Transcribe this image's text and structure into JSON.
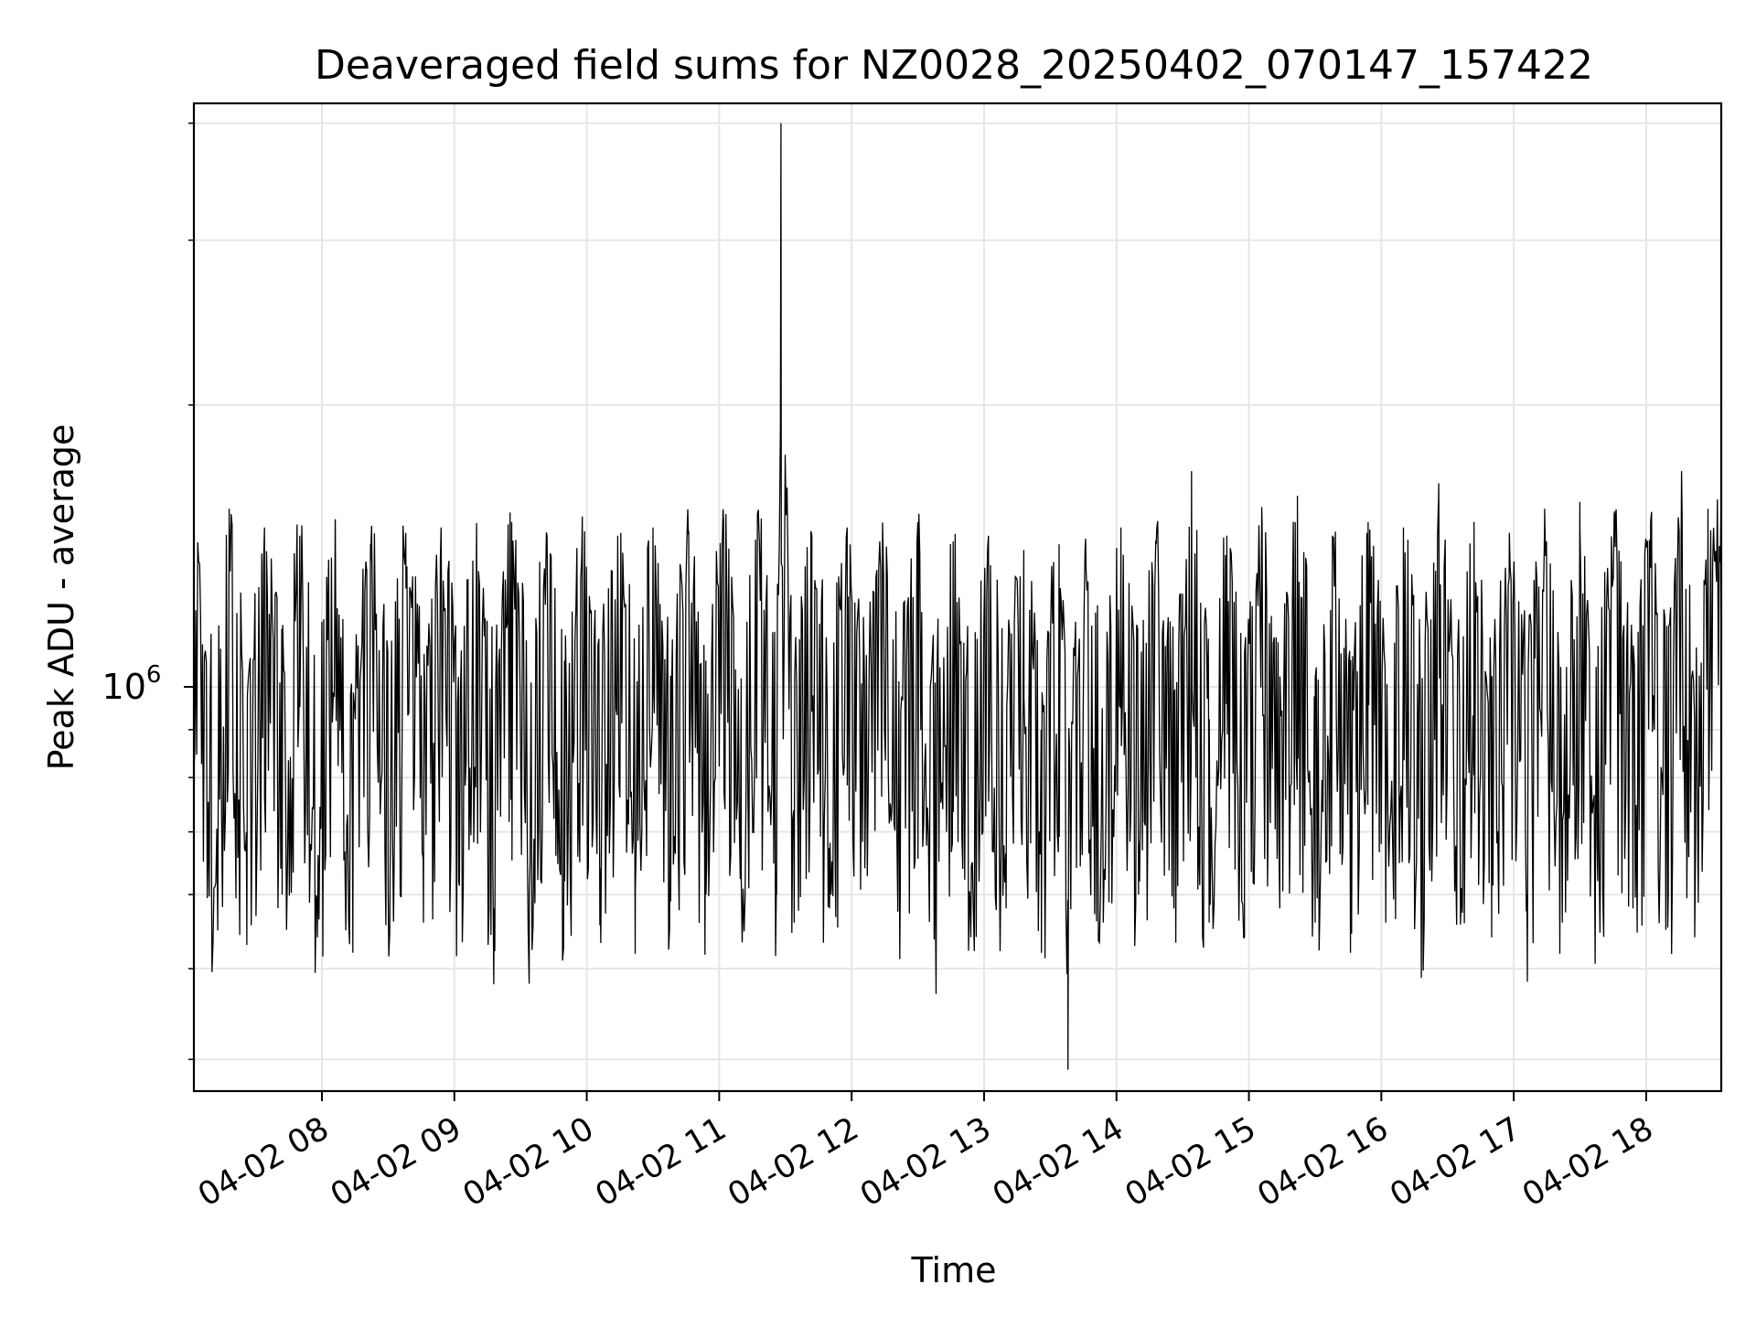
{
  "chart_data": {
    "type": "line",
    "title": "Deaveraged field sums for NZ0028_20250402_070147_157422",
    "xlabel": "Time",
    "ylabel": "Peak ADU - average",
    "x_axis": {
      "start": "04-02 07:02",
      "end": "04-02 18:34",
      "tick_labels": [
        "04-02 08",
        "04-02 09",
        "04-02 10",
        "04-02 11",
        "04-02 12",
        "04-02 13",
        "04-02 14",
        "04-02 15",
        "04-02 16",
        "04-02 17",
        "04-02 18"
      ]
    },
    "y_axis": {
      "scale": "log",
      "ylim": [
        370000,
        4200000
      ],
      "major_tick_labels": [
        {
          "base": "10",
          "exp": "6",
          "value": 1000000
        }
      ]
    },
    "grid": true,
    "color": "#000000",
    "series_points": [
      [
        "04-02 07:02",
        1400000
      ],
      [
        "04-02 07:10",
        620000
      ],
      [
        "04-02 07:18",
        1550000
      ],
      [
        "04-02 07:26",
        530000
      ],
      [
        "04-02 07:34",
        1480000
      ],
      [
        "04-02 07:42",
        600000
      ],
      [
        "04-02 07:50",
        1450000
      ],
      [
        "04-02 07:58",
        540000
      ],
      [
        "04-02 08:06",
        1500000
      ],
      [
        "04-02 08:14",
        520000
      ],
      [
        "04-02 08:22",
        1420000
      ],
      [
        "04-02 08:30",
        600000
      ],
      [
        "04-02 08:38",
        1460000
      ],
      [
        "04-02 08:46",
        560000
      ],
      [
        "04-02 08:54",
        1480000
      ],
      [
        "04-02 09:02",
        620000
      ],
      [
        "04-02 09:10",
        1400000
      ],
      [
        "04-02 09:18",
        580000
      ],
      [
        "04-02 09:26",
        1500000
      ],
      [
        "04-02 09:34",
        600000
      ],
      [
        "04-02 09:42",
        1450000
      ],
      [
        "04-02 09:50",
        620000
      ],
      [
        "04-02 09:58",
        1520000
      ],
      [
        "04-02 10:06",
        640000
      ],
      [
        "04-02 10:14",
        1450000
      ],
      [
        "04-02 10:22",
        610000
      ],
      [
        "04-02 10:30",
        1480000
      ],
      [
        "04-02 10:38",
        590000
      ],
      [
        "04-02 10:46",
        1460000
      ],
      [
        "04-02 10:54",
        600000
      ],
      [
        "04-02 11:02",
        1500000
      ],
      [
        "04-02 11:10",
        620000
      ],
      [
        "04-02 11:18",
        1470000
      ],
      [
        "04-02 11:26",
        600000
      ],
      [
        "04-02 11:28",
        4000000
      ],
      [
        "04-02 11:34",
        560000
      ],
      [
        "04-02 11:42",
        1450000
      ],
      [
        "04-02 11:50",
        580000
      ],
      [
        "04-02 11:58",
        1480000
      ],
      [
        "04-02 12:06",
        640000
      ],
      [
        "04-02 12:14",
        1420000
      ],
      [
        "04-02 12:22",
        600000
      ],
      [
        "04-02 12:30",
        1500000
      ],
      [
        "04-02 12:38",
        560000
      ],
      [
        "04-02 12:46",
        1430000
      ],
      [
        "04-02 12:54",
        540000
      ],
      [
        "04-02 13:02",
        1450000
      ],
      [
        "04-02 13:10",
        580000
      ],
      [
        "04-02 13:18",
        1400000
      ],
      [
        "04-02 13:26",
        520000
      ],
      [
        "04-02 13:34",
        1420000
      ],
      [
        "04-02 13:38",
        390000
      ],
      [
        "04-02 13:46",
        1440000
      ],
      [
        "04-02 13:54",
        560000
      ],
      [
        "04-02 14:02",
        1480000
      ],
      [
        "04-02 14:10",
        600000
      ],
      [
        "04-02 14:18",
        1420000
      ],
      [
        "04-02 14:26",
        580000
      ],
      [
        "04-02 14:34",
        1700000
      ],
      [
        "04-02 14:42",
        560000
      ],
      [
        "04-02 14:50",
        1450000
      ],
      [
        "04-02 14:58",
        540000
      ],
      [
        "04-02 15:06",
        1480000
      ],
      [
        "04-02 15:14",
        580000
      ],
      [
        "04-02 15:22",
        1600000
      ],
      [
        "04-02 15:30",
        560000
      ],
      [
        "04-02 15:38",
        1420000
      ],
      [
        "04-02 15:46",
        520000
      ],
      [
        "04-02 15:54",
        1500000
      ],
      [
        "04-02 16:02",
        560000
      ],
      [
        "04-02 16:10",
        1480000
      ],
      [
        "04-02 16:18",
        600000
      ],
      [
        "04-02 16:26",
        1650000
      ],
      [
        "04-02 16:34",
        580000
      ],
      [
        "04-02 16:42",
        1500000
      ],
      [
        "04-02 16:50",
        540000
      ],
      [
        "04-02 16:58",
        1460000
      ],
      [
        "04-02 17:06",
        600000
      ],
      [
        "04-02 17:14",
        1550000
      ],
      [
        "04-02 17:22",
        560000
      ],
      [
        "04-02 17:30",
        1480000
      ],
      [
        "04-02 17:38",
        620000
      ],
      [
        "04-02 17:46",
        1520000
      ],
      [
        "04-02 17:54",
        580000
      ],
      [
        "04-02 18:02",
        1500000
      ],
      [
        "04-02 18:10",
        600000
      ],
      [
        "04-02 18:16",
        1700000
      ],
      [
        "04-02 18:22",
        540000
      ],
      [
        "04-02 18:28",
        1550000
      ],
      [
        "04-02 18:34",
        1650000
      ]
    ]
  }
}
